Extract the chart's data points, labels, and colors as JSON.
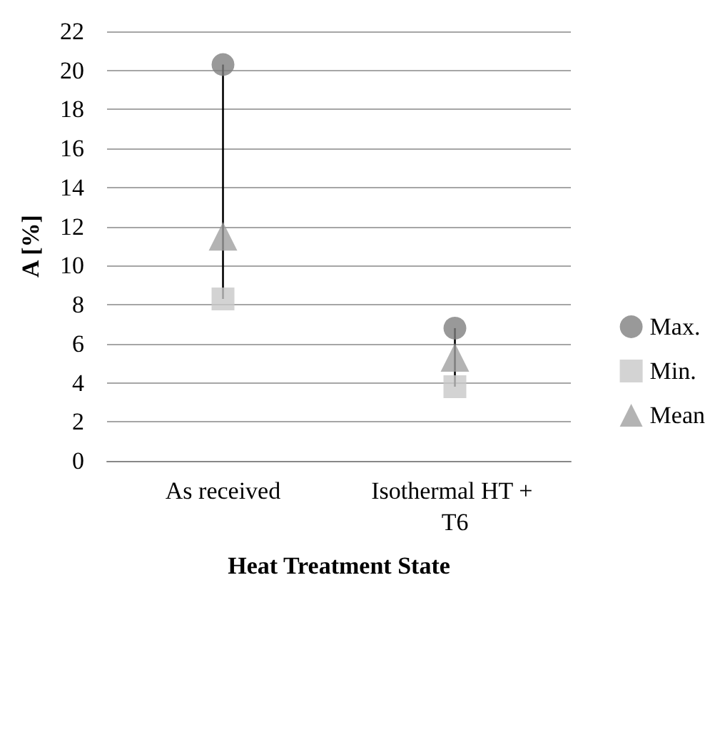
{
  "chart_data": {
    "type": "scatter",
    "xlabel": "Heat Treatment State",
    "ylabel": "A [%]",
    "categories": [
      "As received",
      "Isothermal HT + T6"
    ],
    "series": [
      {
        "type": "line",
        "color": "#000000",
        "marker": "none",
        "x": [
          "As received",
          "As received"
        ],
        "values": [
          8.3,
          20.3
        ]
      },
      {
        "type": "line",
        "color": "#000000",
        "marker": "none",
        "x": [
          "Isothermal HT + T6",
          "Isothermal HT + T6"
        ],
        "values": [
          3.8,
          6.8
        ]
      },
      {
        "name": "Max.",
        "color": "#808080",
        "marker": "circle",
        "values": [
          20.3,
          6.8
        ]
      },
      {
        "name": "Min.",
        "color": "#c8c8c8",
        "marker": "square",
        "values": [
          8.3,
          3.8
        ]
      },
      {
        "name": "Mean",
        "color": "#a0a0a0",
        "marker": "triangle",
        "values": [
          11.5,
          5.3
        ]
      }
    ],
    "ylim": [
      0,
      22
    ],
    "yticks": [
      0,
      2,
      4,
      6,
      8,
      10,
      12,
      14,
      16,
      18,
      20,
      22
    ],
    "grid": "y",
    "legend": "right"
  }
}
